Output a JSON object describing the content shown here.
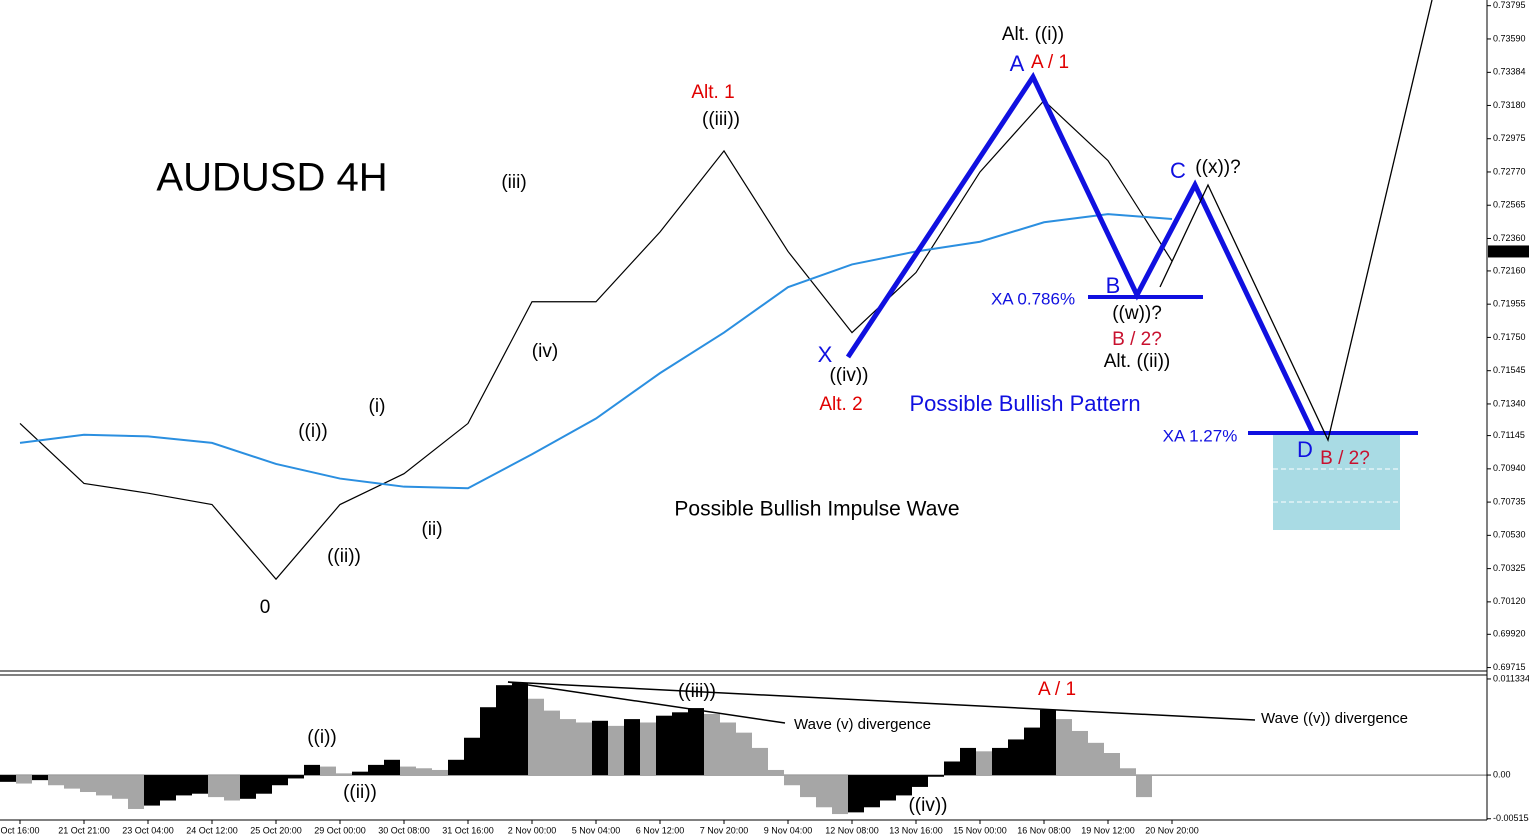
{
  "chart_data": [
    {
      "type": "line",
      "title": "AUDUSD 4H",
      "categories": [
        "Oct 16:00",
        "21 Oct 21:00",
        "23 Oct 04:00",
        "24 Oct 12:00",
        "25 Oct 20:00",
        "29 Oct 00:00",
        "30 Oct 08:00",
        "31 Oct 16:00",
        "2 Nov 00:00",
        "5 Nov 04:00",
        "6 Nov 12:00",
        "7 Nov 20:00",
        "9 Nov 04:00",
        "12 Nov 08:00",
        "13 Nov 16:00",
        "15 Nov 00:00",
        "16 Nov 08:00",
        "19 Nov 12:00",
        "20 Nov 20:00"
      ],
      "series": [
        {
          "color": "#000000",
          "values": [
            0.7122,
            0.7085,
            0.7079,
            0.7072,
            0.7026,
            0.7072,
            0.7091,
            0.7122,
            0.7197,
            0.7197,
            0.724,
            0.729,
            0.7228,
            0.7178,
            0.7215,
            0.7277,
            0.7321,
            0.7284,
            0.7222
          ]
        },
        {
          "color": "#2b8fe0",
          "values": [
            0.711,
            0.7115,
            0.7114,
            0.711,
            0.7097,
            0.7088,
            0.7083,
            0.7082,
            0.7103,
            0.7125,
            0.7153,
            0.7178,
            0.7206,
            0.722,
            0.7228,
            0.7234,
            0.7246,
            0.7251,
            0.7248
          ]
        }
      ],
      "ylim": [
        0.697,
        0.7383
      ],
      "yticks": [
        0.73795,
        {
          "value": 0.7359,
          "label": "0.73590"
        },
        0.73384,
        {
          "value": 0.7318,
          "label": "0.73180"
        },
        0.72975,
        {
          "value": 0.7277,
          "label": "0.72770"
        },
        0.72565,
        {
          "value": 0.7236,
          "label": "0.72360"
        },
        {
          "value": 0.7216,
          "label": "0.72160"
        },
        0.71955,
        {
          "value": 0.7175,
          "label": "0.71750"
        },
        0.71545,
        {
          "value": 0.7134,
          "label": "0.71340"
        },
        0.71145,
        {
          "value": 0.7094,
          "label": "0.70940"
        },
        0.70735,
        {
          "value": 0.7053,
          "label": "0.70530"
        },
        0.70325,
        {
          "value": 0.7012,
          "label": "0.70120"
        },
        {
          "value": 0.6992,
          "label": "0.69920"
        },
        0.69715
      ],
      "last_price": {
        "value": 0.7228,
        "label": "0.72280"
      },
      "annotations": [
        {
          "text": "0",
          "color": "#000000"
        },
        {
          "text": "((i))",
          "color": "#000000"
        },
        {
          "text": "((ii))",
          "color": "#000000"
        },
        {
          "text": "(i)",
          "color": "#000000"
        },
        {
          "text": "(ii)",
          "color": "#000000"
        },
        {
          "text": "(iii)",
          "color": "#000000"
        },
        {
          "text": "(iv)",
          "color": "#000000"
        },
        {
          "text": "Alt. 1",
          "color": "#e00000"
        },
        {
          "text": "((iii))",
          "color": "#000000"
        },
        {
          "text": "X",
          "color": "#1010e0"
        },
        {
          "text": "((iv))",
          "color": "#000000"
        },
        {
          "text": "Alt. 2",
          "color": "#e00000"
        },
        {
          "text": "Possible Bullish Pattern",
          "color": "#1010e0"
        },
        {
          "text": "Possible Bullish Impulse Wave",
          "color": "#000000"
        },
        {
          "text": "Alt. ((i))",
          "color": "#000000"
        },
        {
          "text": "A",
          "color": "#1010e0"
        },
        {
          "text": "A / 1",
          "color": "#e00000"
        },
        {
          "text": "B",
          "color": "#1010e0"
        },
        {
          "text": "XA 0.786%",
          "color": "#1010e0"
        },
        {
          "text": "((w))?",
          "color": "#000000"
        },
        {
          "text": "B / 2?",
          "color": "#c8102e"
        },
        {
          "text": "Alt. ((ii))",
          "color": "#000000"
        },
        {
          "text": "C",
          "color": "#1010e0"
        },
        {
          "text": "((x))?",
          "color": "#000000"
        },
        {
          "text": "XA 1.27%",
          "color": "#1010e0"
        },
        {
          "text": "D",
          "color": "#1010e0"
        },
        {
          "text": "B / 2?",
          "color": "#c8102e"
        }
      ]
    },
    {
      "type": "bar",
      "values": [
        -0.0008,
        -0.001,
        -0.0006,
        -0.0012,
        -0.0016,
        -0.002,
        -0.0024,
        -0.0028,
        -0.004,
        -0.0036,
        -0.003,
        -0.0024,
        -0.0022,
        -0.0026,
        -0.003,
        -0.0028,
        -0.0022,
        -0.0012,
        -0.0004,
        0.0012,
        0.001,
        0.0002,
        0.0004,
        0.0012,
        0.0018,
        0.001,
        0.0008,
        0.0006,
        0.0018,
        0.0044,
        0.008,
        0.0106,
        0.0108,
        0.009,
        0.0076,
        0.0066,
        0.0062,
        0.0064,
        0.0058,
        0.0066,
        0.0062,
        0.007,
        0.0074,
        0.0079,
        0.0072,
        0.0062,
        0.005,
        0.0032,
        0.0006,
        -0.0012,
        -0.0026,
        -0.0038,
        -0.0046,
        -0.0044,
        -0.0038,
        -0.003,
        -0.0024,
        -0.0014,
        -0.0002,
        0.0016,
        0.0032,
        0.0028,
        0.0032,
        0.0042,
        0.0056,
        0.0077,
        0.0066,
        0.0052,
        0.0038,
        0.0026,
        0.0008,
        -0.0026
      ],
      "ylim": [
        -0.0053,
        0.0118
      ],
      "yticks": [
        0.011334,
        {
          "value": 0,
          "label": "0.00"
        },
        -0.005154
      ],
      "annotations": [
        {
          "text": "((i))",
          "color": "#000000"
        },
        {
          "text": "((ii))",
          "color": "#000000"
        },
        {
          "text": "((iii))",
          "color": "#000000"
        },
        {
          "text": "A / 1",
          "color": "#e00000"
        },
        {
          "text": "((iv))",
          "color": "#000000"
        },
        {
          "text": "Wave (v) divergence",
          "color": "#000000"
        },
        {
          "text": "Wave ((v)) divergence",
          "color": "#000000"
        }
      ]
    }
  ]
}
